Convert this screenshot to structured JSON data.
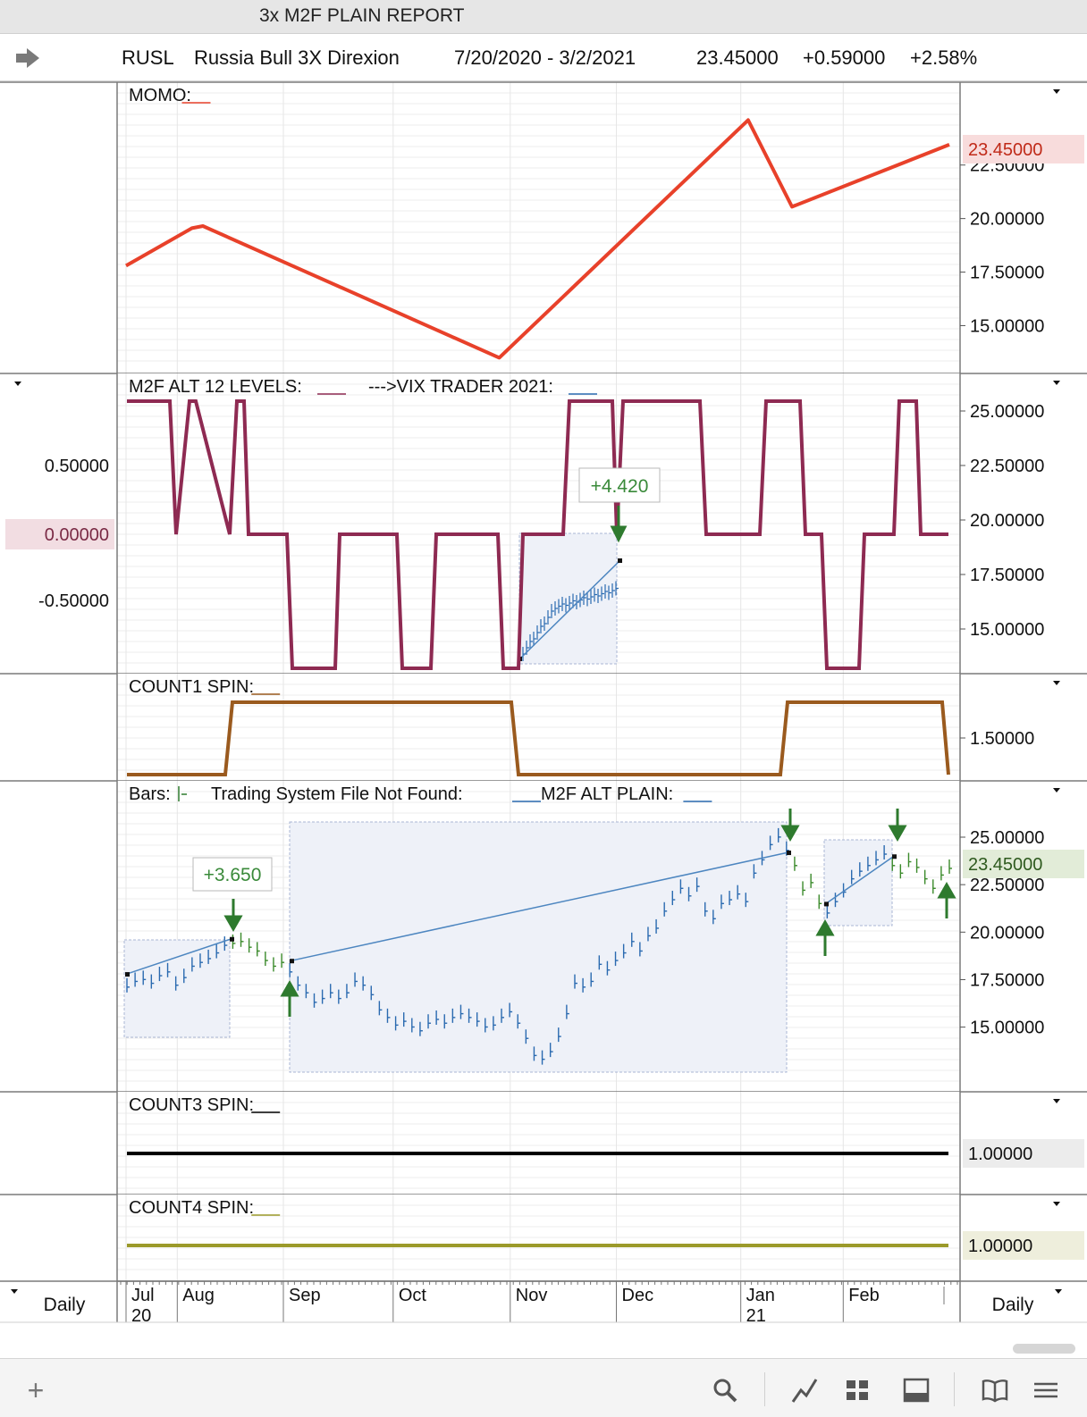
{
  "window": {
    "title": "3x M2F PLAIN REPORT"
  },
  "header": {
    "symbol": "RUSL",
    "name": "Russia Bull 3X Direxion",
    "date_range": "7/20/2020 - 3/2/2021",
    "last": "23.45000",
    "change": "+0.59000",
    "change_pct": "+2.58%"
  },
  "footer": {
    "left_period": "Daily",
    "right_period": "Daily"
  },
  "chart_data": [
    {
      "type": "line",
      "title": "MOMO:",
      "series": [
        {
          "name": "MOMO",
          "color": "#e8412a"
        }
      ],
      "x": [
        "2020-07-20",
        "2020-08-07",
        "2020-08-10",
        "2020-10-30",
        "2021-01-06",
        "2021-01-18",
        "2021-03-02"
      ],
      "values": [
        17.8,
        19.55,
        19.65,
        13.5,
        24.6,
        20.55,
        23.45
      ],
      "y_ticks": [
        "15.00000",
        "17.50000",
        "20.00000",
        "22.50000"
      ],
      "ylim": [
        13.1,
        25.2
      ],
      "last_label": "23.45000",
      "last_label_color": "#c02a18"
    },
    {
      "type": "line",
      "title": "M2F ALT 12 LEVELS:",
      "series": [
        {
          "name": "M2F ALT 12 LEVELS",
          "color": "#8e2a52"
        },
        {
          "name": "--->VIX TRADER 2021",
          "color": "#2a6ab0"
        }
      ],
      "step_levels": [
        1,
        0,
        1,
        0,
        1,
        0,
        -1,
        0,
        -1,
        0,
        -1,
        1,
        0,
        1,
        0,
        1,
        0,
        -1,
        0,
        1,
        0
      ],
      "left_ticks": [
        "0.50000",
        "0.00000",
        "-0.50000"
      ],
      "left_highlight": "0.00000",
      "right_ticks": [
        "15.00000",
        "17.50000",
        "20.00000",
        "22.50000",
        "25.00000"
      ],
      "annotation": "+4.420",
      "annotation_color": "#3a8a3a"
    },
    {
      "type": "line",
      "title": "COUNT1 SPIN:",
      "series": [
        {
          "name": "COUNT1 SPIN",
          "color": "#9a5a1e"
        }
      ],
      "step_levels": [
        1,
        2,
        1,
        2,
        1
      ],
      "right_ticks": [
        "1.50000"
      ]
    },
    {
      "type": "bar",
      "title_bars": "Bars:",
      "title_system": "Trading System File Not Found:",
      "title_plain": "M2F ALT PLAIN:",
      "right_ticks": [
        "15.00000",
        "17.50000",
        "20.00000",
        "22.50000",
        "25.00000"
      ],
      "ylim": [
        13.1,
        25.8
      ],
      "last_label": "23.45000",
      "annotation": "+3.650",
      "annotation_color": "#3a8a3a",
      "trades": [
        {
          "from": "2020-07-20",
          "to": "2020-08-10",
          "entry": 17.8,
          "exit": 19.65
        },
        {
          "from": "2020-08-24",
          "to": "2021-01-06",
          "entry": 18.5,
          "exit": 24.2
        },
        {
          "from": "2021-01-14",
          "to": "2021-02-08",
          "entry": 21.5,
          "exit": 24.0
        }
      ],
      "prices": [
        17.2,
        17.5,
        17.6,
        17.4,
        17.8,
        18.0,
        17.3,
        17.7,
        18.3,
        18.5,
        18.7,
        19.0,
        19.4,
        19.5,
        19.6,
        19.3,
        19.1,
        18.6,
        18.3,
        18.5,
        18.0,
        17.3,
        16.9,
        16.4,
        16.6,
        16.9,
        16.6,
        16.9,
        17.5,
        17.3,
        16.8,
        16.0,
        15.6,
        15.2,
        15.4,
        15.1,
        14.9,
        15.3,
        15.5,
        15.3,
        15.6,
        15.8,
        15.6,
        15.4,
        15.1,
        15.2,
        15.6,
        15.9,
        15.3,
        14.5,
        13.6,
        13.4,
        13.8,
        14.6,
        15.8,
        17.4,
        17.2,
        17.5,
        18.4,
        18.1,
        18.6,
        19.0,
        19.6,
        19.1,
        19.9,
        20.3,
        21.2,
        21.8,
        22.4,
        22.0,
        22.5,
        21.2,
        20.8,
        21.6,
        21.8,
        22.1,
        21.7,
        23.2,
        23.9,
        24.7,
        25.1,
        24.4,
        23.6,
        22.3,
        22.7,
        21.6,
        21.1,
        21.7,
        22.2,
        22.9,
        23.3,
        23.6,
        23.9,
        24.2,
        23.6,
        23.2,
        23.8,
        23.5,
        22.9,
        22.4,
        23.1,
        23.45
      ]
    },
    {
      "type": "line",
      "title": "COUNT3 SPIN:",
      "series": [
        {
          "name": "COUNT3 SPIN",
          "color": "#000000"
        }
      ],
      "values": [
        1.0
      ],
      "last_label": "1.00000"
    },
    {
      "type": "line",
      "title": "COUNT4 SPIN:",
      "series": [
        {
          "name": "COUNT4 SPIN",
          "color": "#9b9a2a"
        }
      ],
      "values": [
        1.0
      ],
      "last_label": "1.00000"
    }
  ],
  "x_axis": {
    "months": [
      "Jul",
      "Aug",
      "Sep",
      "Oct",
      "Nov",
      "Dec",
      "Jan",
      "Feb"
    ],
    "years": [
      "20",
      "21"
    ]
  },
  "icons": [
    "arrow-right-icon",
    "plus-icon",
    "search-icon",
    "line-chart-icon",
    "grid-icon",
    "panel-icon",
    "book-icon",
    "menu-icon",
    "dropdown-icon"
  ]
}
